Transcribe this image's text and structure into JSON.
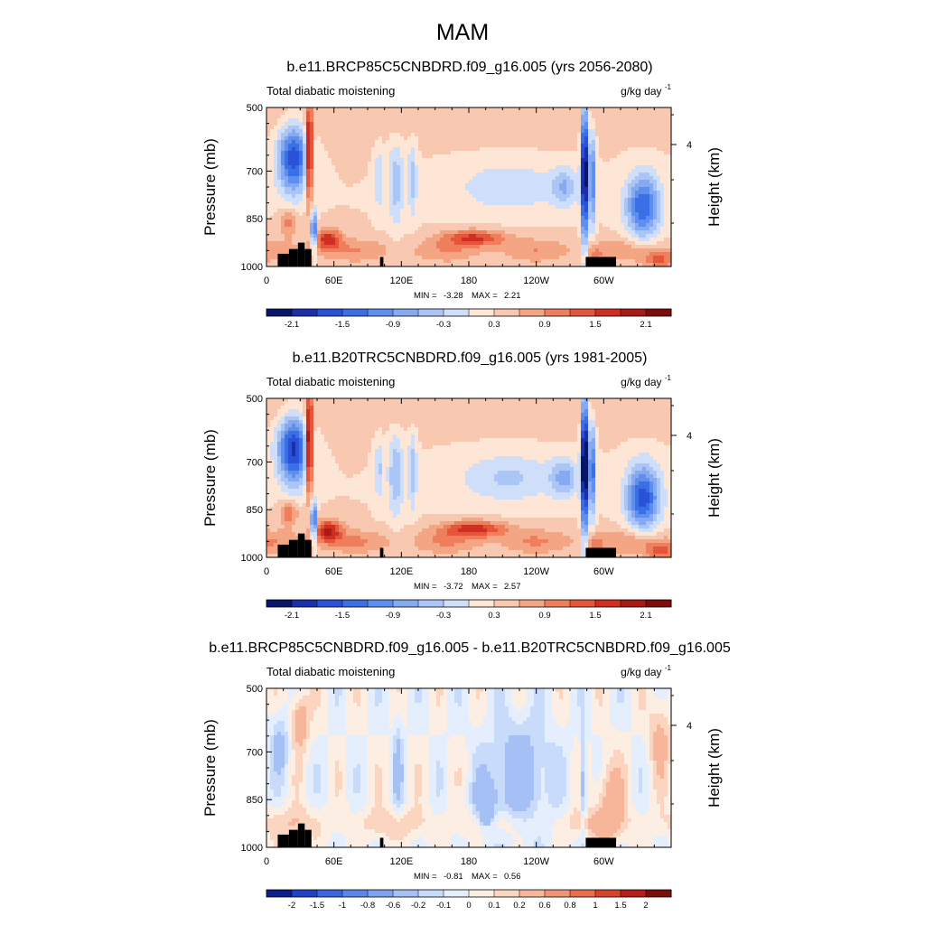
{
  "figure": {
    "title": "MAM"
  },
  "colors": {
    "plot_frame": "#000000",
    "terrain": "#000000",
    "cmap_abs": [
      "#08166a",
      "#1a2fa8",
      "#2a52d6",
      "#3b6fe6",
      "#5f8fee",
      "#86aaf2",
      "#abc5f6",
      "#cfdffa",
      "#fde6d6",
      "#f9c8b0",
      "#f4a684",
      "#ef7e5c",
      "#e4553a",
      "#cf2e22",
      "#a81a14",
      "#7c0d0b"
    ],
    "cmap_diff": [
      "#0c1f8c",
      "#1f43c7",
      "#3a66e0",
      "#5a86ea",
      "#7ea3f0",
      "#a4c0f5",
      "#c9dbfa",
      "#e4eefd",
      "#fdeee4",
      "#fbd5c0",
      "#f7b699",
      "#f29473",
      "#ea6e4e",
      "#d8432e",
      "#b51f18",
      "#7c0d0b"
    ]
  },
  "chart_data": [
    {
      "type": "heatmap",
      "title": "b.e11.BRCP85C5CNBDRD.f09_g16.005 (yrs 2056-2080)",
      "left_string": "Total diabatic moistening",
      "units": "g/kg day",
      "units_exponent": "-1",
      "ylabel": "Pressure (mb)",
      "ylabel_right": "Height (km)",
      "x_ticks": [
        "0",
        "60E",
        "120E",
        "180",
        "120W",
        "60W"
      ],
      "x_tick_values": [
        0,
        60,
        120,
        180,
        240,
        300
      ],
      "y_ticks": [
        "500",
        "700",
        "850",
        "1000"
      ],
      "y_tick_values": [
        500,
        700,
        850,
        1000
      ],
      "right_ticks": [
        "4"
      ],
      "ylim": [
        500,
        1000
      ],
      "xlim": [
        0,
        360
      ],
      "min": "-3.28",
      "max": "2.21",
      "min_label": "MIN =",
      "max_label": "MAX =",
      "colorbar_labels": [
        "-2.1",
        "-1.5",
        "-0.9",
        "-0.3",
        "0.3",
        "0.9",
        "1.5",
        "2.1"
      ],
      "cmap": "abs",
      "scale": 1.0
    },
    {
      "type": "heatmap",
      "title": "b.e11.B20TRC5CNBDRD.f09_g16.005 (yrs 1981-2005)",
      "left_string": "Total diabatic moistening",
      "units": "g/kg day",
      "units_exponent": "-1",
      "ylabel": "Pressure (mb)",
      "ylabel_right": "Height (km)",
      "x_ticks": [
        "0",
        "60E",
        "120E",
        "180",
        "120W",
        "60W"
      ],
      "x_tick_values": [
        0,
        60,
        120,
        180,
        240,
        300
      ],
      "y_ticks": [
        "500",
        "700",
        "850",
        "1000"
      ],
      "y_tick_values": [
        500,
        700,
        850,
        1000
      ],
      "right_ticks": [
        "4"
      ],
      "ylim": [
        500,
        1000
      ],
      "xlim": [
        0,
        360
      ],
      "min": "-3.72",
      "max": "2.57",
      "min_label": "MIN =",
      "max_label": "MAX =",
      "colorbar_labels": [
        "-2.1",
        "-1.5",
        "-0.9",
        "-0.3",
        "0.3",
        "0.9",
        "1.5",
        "2.1"
      ],
      "cmap": "abs",
      "scale": 1.1
    },
    {
      "type": "heatmap",
      "title": "b.e11.BRCP85C5CNBDRD.f09_g16.005 - b.e11.B20TRC5CNBDRD.f09_g16.005",
      "left_string": "Total diabatic moistening",
      "units": "g/kg day",
      "units_exponent": "-1",
      "ylabel": "Pressure (mb)",
      "ylabel_right": "Height (km)",
      "x_ticks": [
        "0",
        "60E",
        "120E",
        "180",
        "120W",
        "60W"
      ],
      "x_tick_values": [
        0,
        60,
        120,
        180,
        240,
        300
      ],
      "y_ticks": [
        "500",
        "700",
        "850",
        "1000"
      ],
      "y_tick_values": [
        500,
        700,
        850,
        1000
      ],
      "right_ticks": [
        "4"
      ],
      "ylim": [
        500,
        1000
      ],
      "xlim": [
        0,
        360
      ],
      "min": "-0.81",
      "max": "0.56",
      "min_label": "MIN =",
      "max_label": "MAX =",
      "colorbar_labels": [
        "-2",
        "-1.5",
        "-1",
        "-0.8",
        "-0.6",
        "-0.2",
        "-0.1",
        "0",
        "0.1",
        "0.2",
        "0.6",
        "0.8",
        "1",
        "1.5",
        "2"
      ],
      "cmap": "diff",
      "scale": 1.0
    }
  ]
}
